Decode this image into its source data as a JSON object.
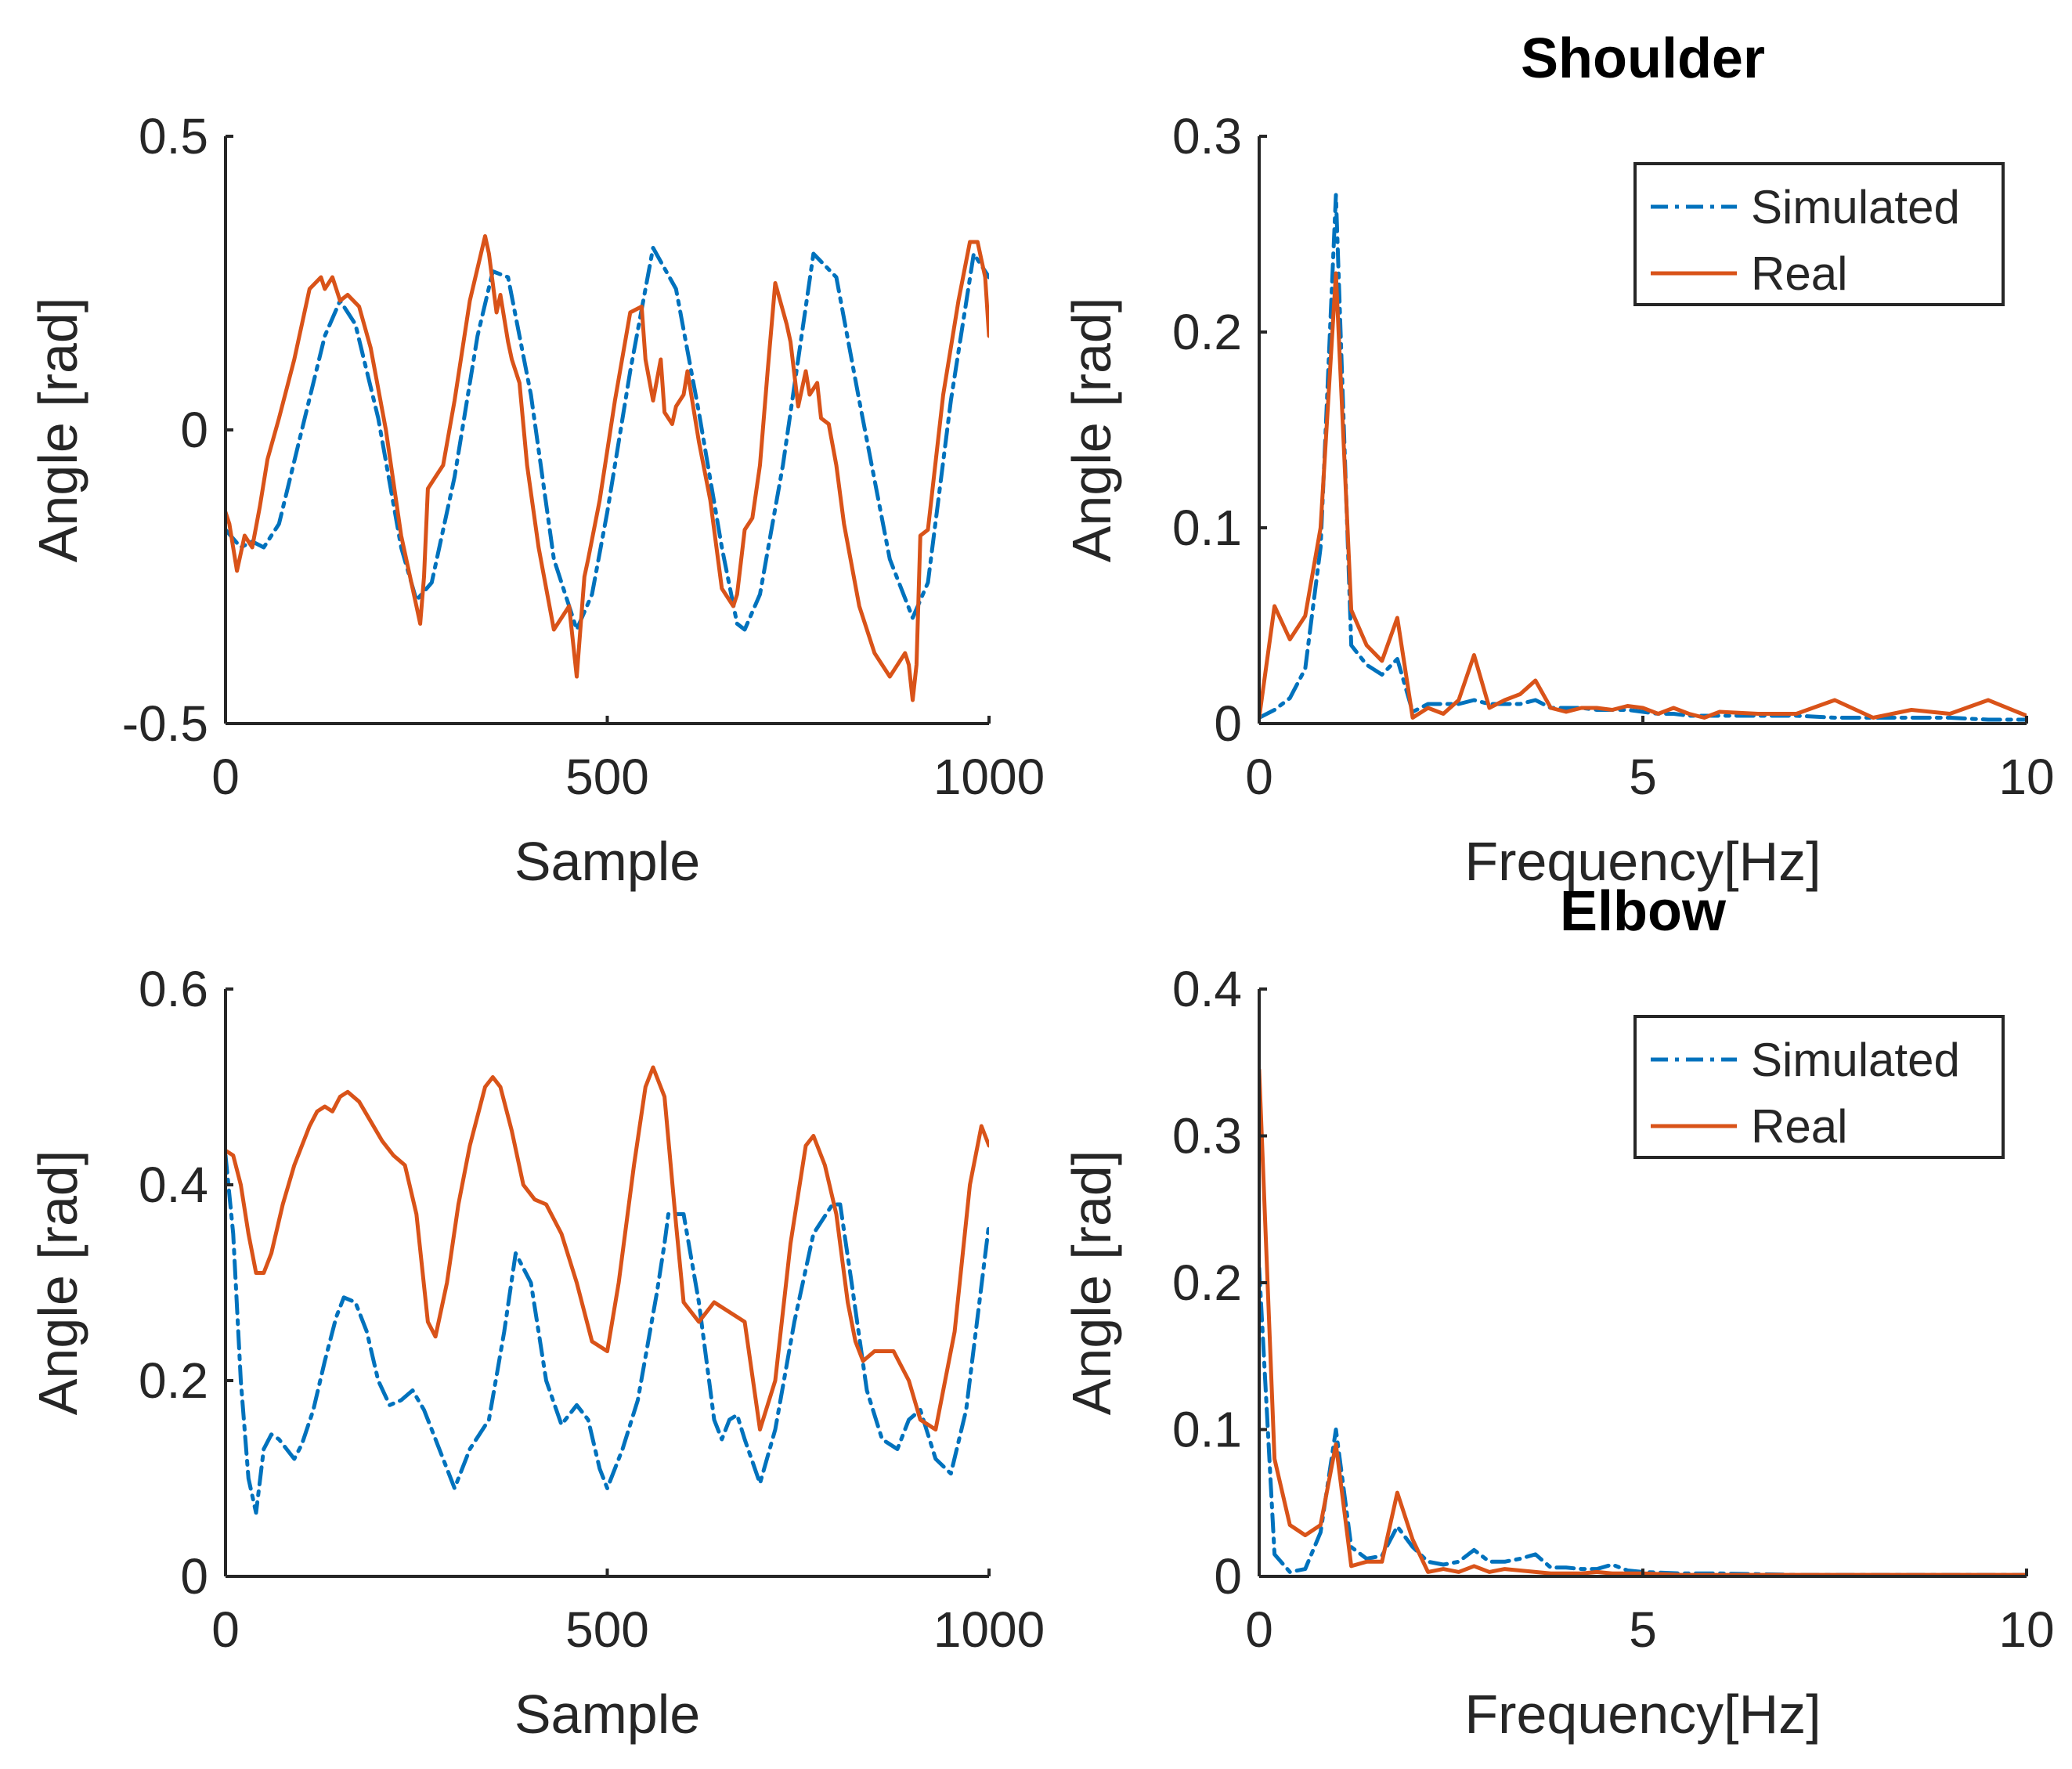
{
  "colors": {
    "simulated": "#0072BD",
    "real": "#D95319",
    "axis": "#262626"
  },
  "chart_data": [
    {
      "id": "shoulder-time",
      "type": "line",
      "title": "",
      "xlabel": "Sample",
      "ylabel": "Angle [rad]",
      "xlim": [
        0,
        1000
      ],
      "ylim": [
        -0.5,
        0.5
      ],
      "xticks": [
        0,
        500,
        1000
      ],
      "xtick_labels": [
        "0",
        "500",
        "1000"
      ],
      "yticks": [
        -0.5,
        0,
        0.5
      ],
      "ytick_labels": [
        "-0.5",
        "0",
        "0.5"
      ],
      "legend": null,
      "series": [
        {
          "name": "Simulated",
          "style": "dashdot",
          "x": [
            0,
            20,
            35,
            50,
            70,
            100,
            130,
            150,
            170,
            200,
            230,
            250,
            270,
            300,
            330,
            350,
            370,
            400,
            430,
            460,
            480,
            500,
            530,
            560,
            590,
            620,
            650,
            670,
            680,
            700,
            730,
            770,
            800,
            830,
            870,
            900,
            920,
            950,
            980,
            1000
          ],
          "y": [
            -0.17,
            -0.2,
            -0.19,
            -0.2,
            -0.16,
            0.0,
            0.16,
            0.22,
            0.18,
            0.02,
            -0.2,
            -0.29,
            -0.26,
            -0.08,
            0.16,
            0.27,
            0.26,
            0.06,
            -0.22,
            -0.34,
            -0.28,
            -0.14,
            0.1,
            0.31,
            0.24,
            0.03,
            -0.2,
            -0.33,
            -0.34,
            -0.28,
            -0.06,
            0.3,
            0.26,
            0.05,
            -0.22,
            -0.32,
            -0.26,
            0.05,
            0.3,
            0.26
          ]
        },
        {
          "name": "Real",
          "style": "solid",
          "x": [
            0,
            5,
            15,
            25,
            35,
            45,
            55,
            70,
            90,
            110,
            125,
            130,
            140,
            150,
            160,
            175,
            190,
            210,
            230,
            250,
            255,
            260,
            265,
            275,
            285,
            300,
            320,
            340,
            345,
            355,
            360,
            370,
            375,
            385,
            395,
            410,
            430,
            450,
            460,
            470,
            475,
            490,
            510,
            530,
            545,
            550,
            560,
            570,
            575,
            585,
            590,
            600,
            605,
            620,
            635,
            650,
            665,
            670,
            680,
            690,
            700,
            710,
            720,
            735,
            740,
            750,
            760,
            765,
            775,
            780,
            790,
            800,
            810,
            830,
            850,
            870,
            890,
            895,
            900,
            905,
            910,
            920,
            940,
            960,
            975,
            985,
            995,
            1000
          ],
          "y": [
            -0.14,
            -0.16,
            -0.24,
            -0.18,
            -0.2,
            -0.13,
            -0.05,
            0.02,
            0.12,
            0.24,
            0.26,
            0.24,
            0.26,
            0.22,
            0.23,
            0.21,
            0.14,
            0.0,
            -0.18,
            -0.3,
            -0.33,
            -0.25,
            -0.1,
            -0.08,
            -0.06,
            0.05,
            0.22,
            0.33,
            0.3,
            0.2,
            0.23,
            0.15,
            0.12,
            0.08,
            -0.06,
            -0.2,
            -0.34,
            -0.3,
            -0.42,
            -0.25,
            -0.22,
            -0.12,
            0.05,
            0.2,
            0.21,
            0.12,
            0.05,
            0.12,
            0.03,
            0.01,
            0.04,
            0.06,
            0.1,
            -0.02,
            -0.12,
            -0.27,
            -0.3,
            -0.28,
            -0.17,
            -0.15,
            -0.06,
            0.1,
            0.25,
            0.18,
            0.15,
            0.04,
            0.1,
            0.06,
            0.08,
            0.02,
            0.01,
            -0.06,
            -0.16,
            -0.3,
            -0.38,
            -0.42,
            -0.38,
            -0.4,
            -0.46,
            -0.4,
            -0.18,
            -0.17,
            0.06,
            0.22,
            0.32,
            0.32,
            0.26,
            0.16
          ]
        }
      ]
    },
    {
      "id": "shoulder-freq",
      "type": "line",
      "title": "Shoulder",
      "xlabel": "Frequency[Hz]",
      "ylabel": "Angle [rad]",
      "xlim": [
        0,
        10
      ],
      "ylim": [
        0,
        0.3
      ],
      "xticks": [
        0,
        5,
        10
      ],
      "xtick_labels": [
        "0",
        "5",
        "10"
      ],
      "yticks": [
        0,
        0.1,
        0.2,
        0.3
      ],
      "ytick_labels": [
        "0",
        "0.1",
        "0.2",
        "0.3"
      ],
      "legend": {
        "position": "top-right",
        "entries": [
          "Simulated",
          "Real"
        ]
      },
      "series": [
        {
          "name": "Simulated",
          "style": "dashdot",
          "x": [
            0,
            0.2,
            0.4,
            0.6,
            0.8,
            1.0,
            1.2,
            1.4,
            1.6,
            1.8,
            2.0,
            2.2,
            2.4,
            2.6,
            2.8,
            3.0,
            3.2,
            3.4,
            3.6,
            3.8,
            4.0,
            4.2,
            4.4,
            4.6,
            4.8,
            5.0,
            5.2,
            5.4,
            5.6,
            5.8,
            6.0,
            6.5,
            7.0,
            7.5,
            8.0,
            8.5,
            9.0,
            9.5,
            10.0
          ],
          "y": [
            0.003,
            0.007,
            0.013,
            0.028,
            0.09,
            0.27,
            0.04,
            0.03,
            0.025,
            0.033,
            0.006,
            0.01,
            0.01,
            0.01,
            0.012,
            0.01,
            0.01,
            0.01,
            0.012,
            0.008,
            0.008,
            0.008,
            0.007,
            0.007,
            0.007,
            0.006,
            0.005,
            0.005,
            0.004,
            0.004,
            0.004,
            0.004,
            0.004,
            0.003,
            0.003,
            0.003,
            0.003,
            0.002,
            0.002
          ]
        },
        {
          "name": "Real",
          "style": "solid",
          "x": [
            0,
            0.2,
            0.4,
            0.6,
            0.8,
            1.0,
            1.2,
            1.4,
            1.6,
            1.8,
            2.0,
            2.2,
            2.4,
            2.6,
            2.8,
            3.0,
            3.2,
            3.4,
            3.6,
            3.8,
            4.0,
            4.2,
            4.4,
            4.6,
            4.8,
            5.0,
            5.2,
            5.4,
            5.6,
            5.8,
            6.0,
            6.5,
            7.0,
            7.5,
            8.0,
            8.5,
            9.0,
            9.5,
            10.0
          ],
          "y": [
            0.003,
            0.06,
            0.043,
            0.055,
            0.1,
            0.23,
            0.058,
            0.04,
            0.032,
            0.054,
            0.003,
            0.008,
            0.005,
            0.012,
            0.035,
            0.008,
            0.012,
            0.015,
            0.022,
            0.008,
            0.006,
            0.008,
            0.008,
            0.007,
            0.009,
            0.008,
            0.005,
            0.008,
            0.005,
            0.003,
            0.006,
            0.005,
            0.005,
            0.012,
            0.003,
            0.007,
            0.005,
            0.012,
            0.004
          ]
        }
      ]
    },
    {
      "id": "elbow-time",
      "type": "line",
      "title": "",
      "xlabel": "Sample",
      "ylabel": "Angle [rad]",
      "xlim": [
        0,
        1000
      ],
      "ylim": [
        0,
        0.6
      ],
      "xticks": [
        0,
        500,
        1000
      ],
      "xtick_labels": [
        "0",
        "500",
        "1000"
      ],
      "yticks": [
        0,
        0.2,
        0.4,
        0.6
      ],
      "ytick_labels": [
        "0",
        "0.2",
        "0.4",
        "0.6"
      ],
      "legend": null,
      "series": [
        {
          "name": "Simulated",
          "style": "dashdot",
          "x": [
            0,
            10,
            20,
            30,
            40,
            50,
            60,
            70,
            80,
            90,
            100,
            115,
            130,
            145,
            155,
            170,
            185,
            200,
            215,
            230,
            245,
            260,
            270,
            285,
            300,
            320,
            345,
            365,
            380,
            400,
            420,
            440,
            460,
            475,
            490,
            500,
            520,
            540,
            565,
            575,
            580,
            600,
            620,
            640,
            650,
            660,
            670,
            680,
            700,
            720,
            745,
            770,
            795,
            805,
            820,
            840,
            860,
            880,
            895,
            910,
            930,
            950,
            970,
            1000
          ],
          "y": [
            0.43,
            0.35,
            0.2,
            0.1,
            0.065,
            0.13,
            0.145,
            0.14,
            0.13,
            0.12,
            0.135,
            0.17,
            0.22,
            0.265,
            0.285,
            0.28,
            0.25,
            0.2,
            0.175,
            0.18,
            0.19,
            0.17,
            0.15,
            0.12,
            0.09,
            0.13,
            0.16,
            0.25,
            0.33,
            0.3,
            0.2,
            0.155,
            0.175,
            0.16,
            0.11,
            0.09,
            0.13,
            0.18,
            0.29,
            0.34,
            0.37,
            0.37,
            0.28,
            0.16,
            0.14,
            0.16,
            0.165,
            0.14,
            0.095,
            0.15,
            0.26,
            0.35,
            0.38,
            0.38,
            0.3,
            0.19,
            0.14,
            0.13,
            0.16,
            0.17,
            0.12,
            0.105,
            0.17,
            0.36
          ]
        },
        {
          "name": "Real",
          "style": "solid",
          "x": [
            0,
            10,
            20,
            30,
            40,
            50,
            60,
            75,
            90,
            110,
            120,
            130,
            140,
            150,
            160,
            175,
            190,
            205,
            220,
            235,
            250,
            265,
            275,
            290,
            305,
            320,
            340,
            350,
            360,
            375,
            390,
            405,
            420,
            440,
            460,
            480,
            500,
            515,
            535,
            550,
            560,
            575,
            590,
            600,
            620,
            640,
            660,
            680,
            700,
            720,
            740,
            760,
            770,
            785,
            800,
            815,
            825,
            835,
            850,
            875,
            895,
            910,
            930,
            955,
            975,
            990,
            1000
          ],
          "y": [
            0.435,
            0.43,
            0.4,
            0.35,
            0.31,
            0.31,
            0.33,
            0.38,
            0.42,
            0.46,
            0.475,
            0.48,
            0.475,
            0.49,
            0.495,
            0.485,
            0.465,
            0.445,
            0.43,
            0.42,
            0.37,
            0.26,
            0.245,
            0.3,
            0.38,
            0.44,
            0.5,
            0.51,
            0.5,
            0.455,
            0.4,
            0.385,
            0.38,
            0.35,
            0.3,
            0.24,
            0.23,
            0.3,
            0.42,
            0.5,
            0.52,
            0.49,
            0.36,
            0.28,
            0.26,
            0.28,
            0.27,
            0.26,
            0.15,
            0.2,
            0.34,
            0.44,
            0.45,
            0.42,
            0.37,
            0.28,
            0.24,
            0.22,
            0.23,
            0.23,
            0.2,
            0.16,
            0.15,
            0.25,
            0.4,
            0.46,
            0.44
          ]
        }
      ]
    },
    {
      "id": "elbow-freq",
      "type": "line",
      "title": "Elbow",
      "xlabel": "Frequency[Hz]",
      "ylabel": "Angle [rad]",
      "xlim": [
        0,
        10
      ],
      "ylim": [
        0,
        0.4
      ],
      "xticks": [
        0,
        5,
        10
      ],
      "xtick_labels": [
        "0",
        "5",
        "10"
      ],
      "yticks": [
        0,
        0.1,
        0.2,
        0.3,
        0.4
      ],
      "ytick_labels": [
        "0",
        "0.1",
        "0.2",
        "0.3",
        "0.4"
      ],
      "legend": {
        "position": "top-right",
        "entries": [
          "Simulated",
          "Real"
        ]
      },
      "series": [
        {
          "name": "Simulated",
          "style": "dashdot",
          "x": [
            0,
            0.2,
            0.4,
            0.6,
            0.8,
            1.0,
            1.2,
            1.4,
            1.6,
            1.8,
            2.0,
            2.2,
            2.4,
            2.6,
            2.8,
            3.0,
            3.2,
            3.4,
            3.6,
            3.8,
            4.0,
            4.2,
            4.4,
            4.6,
            4.8,
            5.0,
            5.5,
            6.0,
            7.0,
            8.0,
            9.0,
            10.0
          ],
          "y": [
            0.21,
            0.015,
            0.003,
            0.005,
            0.03,
            0.1,
            0.02,
            0.012,
            0.014,
            0.034,
            0.02,
            0.01,
            0.008,
            0.01,
            0.018,
            0.01,
            0.01,
            0.012,
            0.015,
            0.006,
            0.006,
            0.005,
            0.005,
            0.008,
            0.004,
            0.003,
            0.002,
            0.002,
            0.001,
            0.001,
            0.001,
            0.001
          ]
        },
        {
          "name": "Real",
          "style": "solid",
          "x": [
            0,
            0.2,
            0.4,
            0.6,
            0.8,
            1.0,
            1.2,
            1.4,
            1.6,
            1.8,
            2.0,
            2.2,
            2.4,
            2.6,
            2.8,
            3.0,
            3.2,
            3.4,
            3.6,
            3.8,
            4.0,
            4.2,
            4.4,
            4.6,
            4.8,
            5.0,
            5.5,
            6.0,
            7.0,
            8.0,
            9.0,
            10.0
          ],
          "y": [
            0.345,
            0.08,
            0.035,
            0.028,
            0.035,
            0.09,
            0.007,
            0.01,
            0.01,
            0.057,
            0.025,
            0.003,
            0.005,
            0.003,
            0.007,
            0.003,
            0.005,
            0.004,
            0.003,
            0.002,
            0.002,
            0.002,
            0.003,
            0.002,
            0.002,
            0.002,
            0.001,
            0.001,
            0.001,
            0.001,
            0.001,
            0.001
          ]
        }
      ]
    }
  ]
}
